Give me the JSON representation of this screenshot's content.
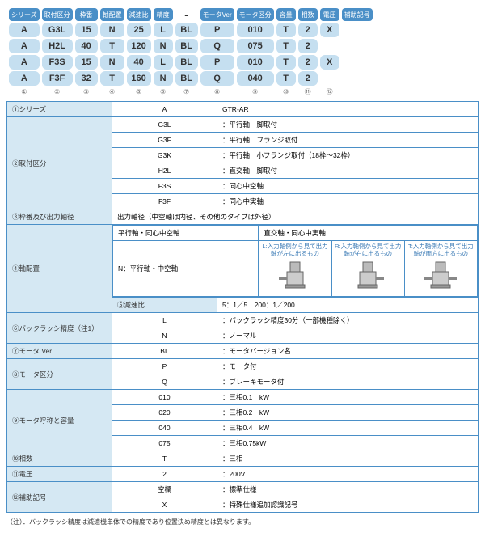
{
  "colors": {
    "header_bg": "#4a8fc7",
    "cell_bg": "#c5dff0",
    "label_bg": "#d5e8f3",
    "border": "#4a8fc7",
    "diag_text": "#3a7ab5"
  },
  "top": {
    "headers": [
      "シリーズ",
      "取付区分",
      "枠番",
      "軸配置",
      "減速比",
      "精度",
      "モータVer",
      "モータ区分",
      "容量",
      "相数",
      "電圧",
      "補助記号"
    ],
    "rows": [
      [
        "A",
        "G3L",
        "15",
        "N",
        "25",
        "L",
        "BL",
        "P",
        "010",
        "T",
        "2",
        "X"
      ],
      [
        "A",
        "H2L",
        "40",
        "T",
        "120",
        "N",
        "BL",
        "Q",
        "075",
        "T",
        "2",
        ""
      ],
      [
        "A",
        "F3S",
        "15",
        "N",
        "40",
        "L",
        "BL",
        "P",
        "010",
        "T",
        "2",
        "X"
      ],
      [
        "A",
        "F3F",
        "32",
        "T",
        "160",
        "N",
        "BL",
        "Q",
        "040",
        "T",
        "2",
        ""
      ]
    ],
    "nums": [
      "①",
      "②",
      "③",
      "④",
      "⑤",
      "⑥",
      "⑦",
      "⑧",
      "⑨",
      "⑩",
      "⑪",
      "⑫"
    ]
  },
  "spec": {
    "r1": {
      "label": "①シリーズ",
      "k": "A",
      "v": "GTR-AR"
    },
    "r2": {
      "label": "②取付区分",
      "items": [
        [
          "G3L",
          "：平行軸　脚取付"
        ],
        [
          "G3F",
          "：平行軸　フランジ取付"
        ],
        [
          "G3K",
          "：平行軸　小フランジ取付（18枠～32枠）"
        ],
        [
          "H2L",
          "：直交軸　脚取付"
        ],
        [
          "F3S",
          "：同心中空軸"
        ],
        [
          "F3F",
          "：同心中実軸"
        ]
      ]
    },
    "r3": {
      "label": "③枠番及び出力軸径",
      "v": "出力軸径（中空軸は内径、その他のタイプは外径）"
    },
    "r4": {
      "label": "④軸配置",
      "h1": "平行軸・同心中空軸",
      "h2": "直交軸・同心中実軸",
      "n": "N：平行軸・中空軸",
      "d": [
        "L:入力軸側から見て出力軸が左に出るもの",
        "R:入力軸側から見て出力軸が右に出るもの",
        "T:入力軸側から見て出力軸が両方に出るもの"
      ]
    },
    "r5": {
      "label": "⑤減速比",
      "v": "5：1／5　200：1／200"
    },
    "r6": {
      "label": "⑥バックラッシ精度（注1）",
      "items": [
        [
          "L",
          "：バックラッシ精度30分（一部機種除く）"
        ],
        [
          "N",
          "：ノーマル"
        ]
      ]
    },
    "r7": {
      "label": "⑦モータ Ver",
      "k": "BL",
      "v": "：モータバージョン名"
    },
    "r8": {
      "label": "⑧モータ区分",
      "items": [
        [
          "P",
          "：モータ付"
        ],
        [
          "Q",
          "：ブレーキモータ付"
        ]
      ]
    },
    "r9": {
      "label": "⑨モータ呼称と容量",
      "items": [
        [
          "010",
          "：三相0.1　kW"
        ],
        [
          "020",
          "：三相0.2　kW"
        ],
        [
          "040",
          "：三相0.4　kW"
        ],
        [
          "075",
          "：三相0.75kW"
        ]
      ]
    },
    "r10": {
      "label": "⑩相数",
      "k": "T",
      "v": "：三相"
    },
    "r11": {
      "label": "⑪電圧",
      "k": "2",
      "v": "：200V"
    },
    "r12": {
      "label": "⑫補助記号",
      "items": [
        [
          "空欄",
          "：標準仕様"
        ],
        [
          "X",
          "：特殊仕様追加認識記号"
        ]
      ]
    }
  },
  "footnote": "（注）．バックラッシ精度は減速機単体での精度であり位置決め精度とは異なります。"
}
